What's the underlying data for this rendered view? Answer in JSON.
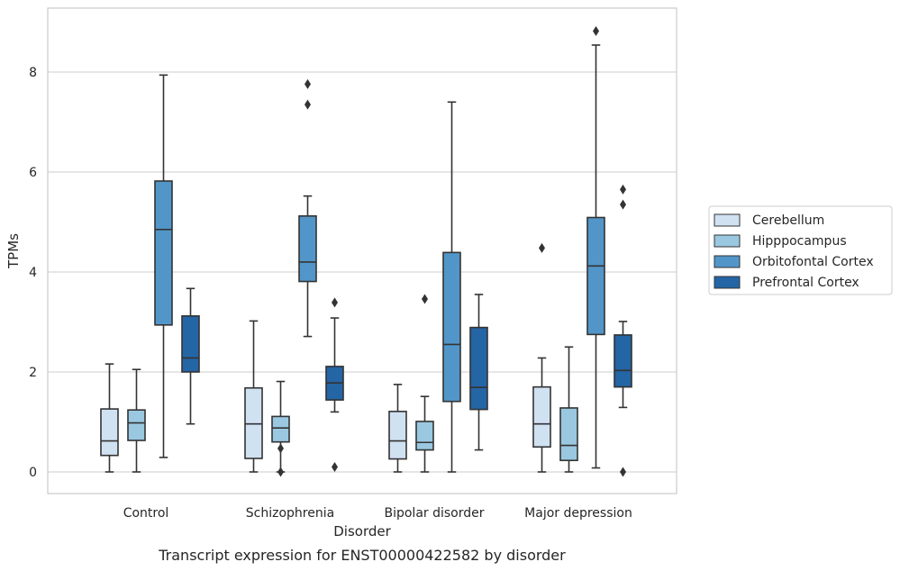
{
  "chart_data": {
    "type": "boxplot",
    "caption": "Transcript expression for ENST00000422582 by disorder",
    "xlabel": "Disorder",
    "ylabel": "TPMs",
    "ylim": [
      -0.4,
      9.3
    ],
    "yticks": [
      0,
      2,
      4,
      6,
      8
    ],
    "grid": "horizontal",
    "legend_position": "right",
    "categories": [
      "Control",
      "Schizophrenia",
      "Bipolar disorder",
      "Major depression"
    ],
    "series": [
      {
        "name": "Cerebellum",
        "color": "#d0e1f2",
        "boxes": [
          {
            "whisker_low": 0.0,
            "q1": 0.33,
            "median": 0.62,
            "q3": 1.26,
            "whisker_high": 2.16,
            "outliers": []
          },
          {
            "whisker_low": 0.0,
            "q1": 0.27,
            "median": 0.96,
            "q3": 1.68,
            "whisker_high": 3.02,
            "outliers": []
          },
          {
            "whisker_low": 0.0,
            "q1": 0.26,
            "median": 0.62,
            "q3": 1.21,
            "whisker_high": 1.75,
            "outliers": []
          },
          {
            "whisker_low": 0.0,
            "q1": 0.5,
            "median": 0.96,
            "q3": 1.7,
            "whisker_high": 2.28,
            "outliers": [
              4.48
            ]
          }
        ]
      },
      {
        "name": "Hipppocampus",
        "color": "#9ac8e0",
        "boxes": [
          {
            "whisker_low": 0.0,
            "q1": 0.63,
            "median": 0.98,
            "q3": 1.24,
            "whisker_high": 2.05,
            "outliers": []
          },
          {
            "whisker_low": 0.0,
            "q1": 0.6,
            "median": 0.88,
            "q3": 1.11,
            "whisker_high": 1.81,
            "outliers": [
              0.47,
              0.0
            ]
          },
          {
            "whisker_low": 0.0,
            "q1": 0.44,
            "median": 0.59,
            "q3": 1.01,
            "whisker_high": 1.51,
            "outliers": [
              3.46
            ]
          },
          {
            "whisker_low": 0.0,
            "q1": 0.23,
            "median": 0.53,
            "q3": 1.28,
            "whisker_high": 2.5,
            "outliers": []
          }
        ]
      },
      {
        "name": "Orbitofontal Cortex",
        "color": "#5296c9",
        "boxes": [
          {
            "whisker_low": 0.29,
            "q1": 2.94,
            "median": 4.85,
            "q3": 5.82,
            "whisker_high": 7.94,
            "outliers": []
          },
          {
            "whisker_low": 2.71,
            "q1": 3.81,
            "median": 4.2,
            "q3": 5.12,
            "whisker_high": 5.52,
            "outliers": [
              7.76,
              7.35
            ]
          },
          {
            "whisker_low": 0.0,
            "q1": 1.41,
            "median": 2.55,
            "q3": 4.39,
            "whisker_high": 7.4,
            "outliers": []
          },
          {
            "whisker_low": 0.08,
            "q1": 2.75,
            "median": 4.12,
            "q3": 5.09,
            "whisker_high": 8.54,
            "outliers": [
              8.82
            ]
          }
        ]
      },
      {
        "name": "Prefrontal Cortex",
        "color": "#2465a5",
        "boxes": [
          {
            "whisker_low": 0.96,
            "q1": 2.0,
            "median": 2.28,
            "q3": 3.12,
            "whisker_high": 3.67,
            "outliers": []
          },
          {
            "whisker_low": 1.2,
            "q1": 1.44,
            "median": 1.78,
            "q3": 2.11,
            "whisker_high": 3.08,
            "outliers": [
              3.39,
              0.1
            ]
          },
          {
            "whisker_low": 0.44,
            "q1": 1.25,
            "median": 1.69,
            "q3": 2.89,
            "whisker_high": 3.55,
            "outliers": []
          },
          {
            "whisker_low": 1.29,
            "q1": 1.7,
            "median": 2.03,
            "q3": 2.74,
            "whisker_high": 3.01,
            "outliers": [
              5.65,
              5.35,
              0.0
            ]
          }
        ]
      }
    ]
  }
}
